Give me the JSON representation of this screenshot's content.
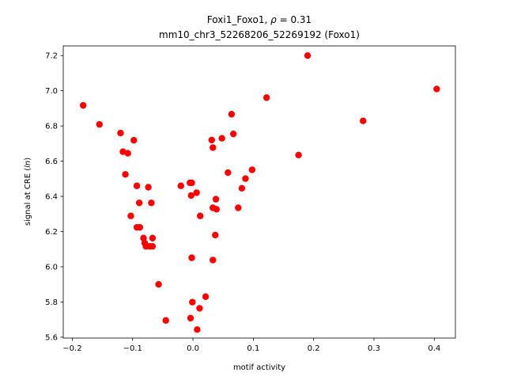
{
  "chart_data": {
    "type": "scatter",
    "title_line1_text": "Foxi1_Foxo1, ",
    "title_line1_rho": "ρ",
    "title_line1_rest": " = 0.31",
    "title_line2": "mm10_chr3_52268206_52269192 (Foxo1)",
    "xlabel": "motif activity",
    "ylabel_prefix": "signal at CRE (",
    "ylabel_italic": "ln",
    "ylabel_suffix": ")",
    "xlim": [
      -0.215,
      0.435
    ],
    "ylim": [
      5.595,
      7.255
    ],
    "xticks": [
      -0.2,
      -0.1,
      0.0,
      0.1,
      0.2,
      0.3,
      0.4
    ],
    "xtick_labels": [
      "−0.2",
      "−0.1",
      "0.0",
      "0.1",
      "0.2",
      "0.3",
      "0.4"
    ],
    "yticks": [
      5.6,
      5.8,
      6.0,
      6.2,
      6.4,
      6.6,
      6.8,
      7.0,
      7.2
    ],
    "ytick_labels": [
      "5.6",
      "5.8",
      "6.0",
      "6.2",
      "6.4",
      "6.6",
      "6.8",
      "7.0",
      "7.2"
    ],
    "grid": false,
    "marker_color": "#ff0000",
    "points": [
      {
        "x": -0.182,
        "y": 6.917
      },
      {
        "x": -0.155,
        "y": 6.809
      },
      {
        "x": -0.12,
        "y": 6.76
      },
      {
        "x": -0.116,
        "y": 6.654
      },
      {
        "x": -0.108,
        "y": 6.645
      },
      {
        "x": -0.112,
        "y": 6.525
      },
      {
        "x": -0.098,
        "y": 6.719
      },
      {
        "x": -0.093,
        "y": 6.46
      },
      {
        "x": -0.089,
        "y": 6.363
      },
      {
        "x": -0.103,
        "y": 6.289
      },
      {
        "x": -0.093,
        "y": 6.224
      },
      {
        "x": -0.088,
        "y": 6.224
      },
      {
        "x": -0.082,
        "y": 6.163
      },
      {
        "x": -0.08,
        "y": 6.135
      },
      {
        "x": -0.078,
        "y": 6.116
      },
      {
        "x": -0.072,
        "y": 6.116
      },
      {
        "x": -0.067,
        "y": 6.163
      },
      {
        "x": -0.067,
        "y": 6.116
      },
      {
        "x": -0.074,
        "y": 6.452
      },
      {
        "x": -0.069,
        "y": 6.363
      },
      {
        "x": -0.057,
        "y": 5.9
      },
      {
        "x": -0.045,
        "y": 5.695
      },
      {
        "x": -0.02,
        "y": 6.46
      },
      {
        "x": -0.005,
        "y": 6.477
      },
      {
        "x": -0.002,
        "y": 6.477
      },
      {
        "x": -0.003,
        "y": 6.405
      },
      {
        "x": 0.006,
        "y": 6.421
      },
      {
        "x": 0.012,
        "y": 6.289
      },
      {
        "x": -0.002,
        "y": 6.051
      },
      {
        "x": -0.004,
        "y": 5.708
      },
      {
        "x": -0.001,
        "y": 5.799
      },
      {
        "x": 0.007,
        "y": 5.643
      },
      {
        "x": 0.011,
        "y": 5.764
      },
      {
        "x": 0.021,
        "y": 5.83
      },
      {
        "x": 0.031,
        "y": 6.72
      },
      {
        "x": 0.033,
        "y": 6.677
      },
      {
        "x": 0.048,
        "y": 6.73
      },
      {
        "x": 0.064,
        "y": 6.867
      },
      {
        "x": 0.067,
        "y": 6.755
      },
      {
        "x": 0.058,
        "y": 6.535
      },
      {
        "x": 0.038,
        "y": 6.384
      },
      {
        "x": 0.033,
        "y": 6.335
      },
      {
        "x": 0.039,
        "y": 6.327
      },
      {
        "x": 0.037,
        "y": 6.18
      },
      {
        "x": 0.033,
        "y": 6.038
      },
      {
        "x": 0.075,
        "y": 6.335
      },
      {
        "x": 0.081,
        "y": 6.446
      },
      {
        "x": 0.087,
        "y": 6.501
      },
      {
        "x": 0.098,
        "y": 6.551
      },
      {
        "x": 0.122,
        "y": 6.961
      },
      {
        "x": 0.175,
        "y": 6.635
      },
      {
        "x": 0.19,
        "y": 7.2
      },
      {
        "x": 0.282,
        "y": 6.829
      },
      {
        "x": 0.404,
        "y": 7.01
      }
    ]
  }
}
